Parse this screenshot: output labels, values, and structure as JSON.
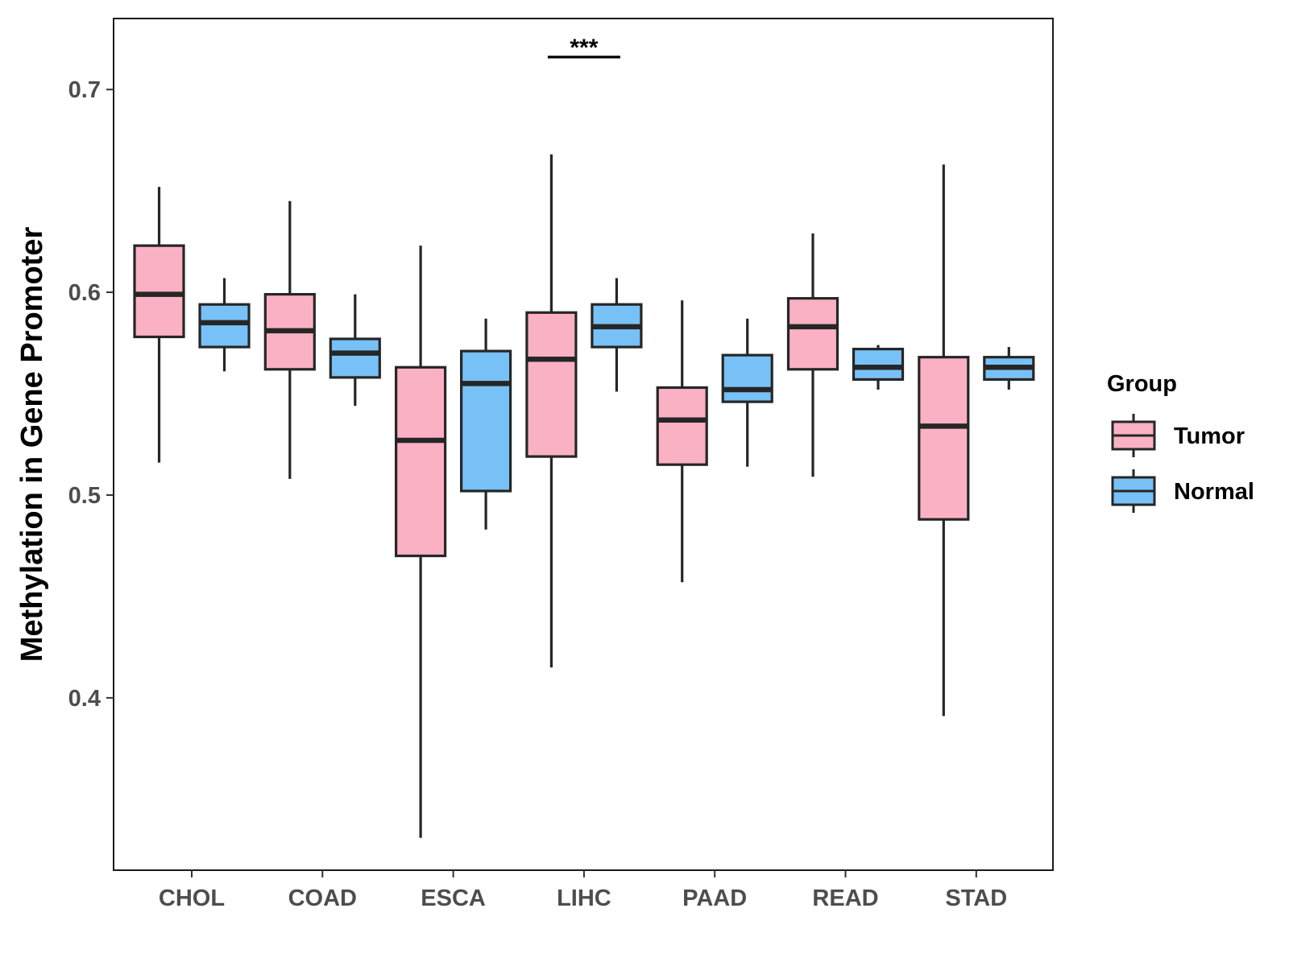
{
  "chart_data": {
    "type": "boxplot",
    "title": "",
    "xlabel": "",
    "ylabel": "Methylation in Gene Promoter",
    "ylim": [
      0.315,
      0.735
    ],
    "y_ticks": [
      "0.4",
      "0.5",
      "0.6",
      "0.7"
    ],
    "y_tick_values": [
      0.4,
      0.5,
      0.6,
      0.7
    ],
    "categories": [
      "CHOL",
      "COAD",
      "ESCA",
      "LIHC",
      "PAAD",
      "READ",
      "STAD"
    ],
    "legend": {
      "title": "Group",
      "position": "right",
      "entries": [
        "Tumor",
        "Normal"
      ]
    },
    "colors": {
      "Tumor": "#fbb1c4",
      "Normal": "#77c1f7",
      "outline": "#262626",
      "frame": "#1a1a1a"
    },
    "series": [
      {
        "name": "Tumor",
        "boxes": [
          {
            "category": "CHOL",
            "whisker_low": 0.516,
            "q1": 0.578,
            "median": 0.599,
            "q3": 0.623,
            "whisker_high": 0.652
          },
          {
            "category": "COAD",
            "whisker_low": 0.508,
            "q1": 0.562,
            "median": 0.581,
            "q3": 0.599,
            "whisker_high": 0.645
          },
          {
            "category": "ESCA",
            "whisker_low": 0.331,
            "q1": 0.47,
            "median": 0.527,
            "q3": 0.563,
            "whisker_high": 0.623
          },
          {
            "category": "LIHC",
            "whisker_low": 0.415,
            "q1": 0.519,
            "median": 0.567,
            "q3": 0.59,
            "whisker_high": 0.668
          },
          {
            "category": "PAAD",
            "whisker_low": 0.457,
            "q1": 0.515,
            "median": 0.537,
            "q3": 0.553,
            "whisker_high": 0.596
          },
          {
            "category": "READ",
            "whisker_low": 0.509,
            "q1": 0.562,
            "median": 0.583,
            "q3": 0.597,
            "whisker_high": 0.629
          },
          {
            "category": "STAD",
            "whisker_low": 0.391,
            "q1": 0.488,
            "median": 0.534,
            "q3": 0.568,
            "whisker_high": 0.663
          }
        ]
      },
      {
        "name": "Normal",
        "boxes": [
          {
            "category": "CHOL",
            "whisker_low": 0.561,
            "q1": 0.573,
            "median": 0.585,
            "q3": 0.594,
            "whisker_high": 0.607
          },
          {
            "category": "COAD",
            "whisker_low": 0.544,
            "q1": 0.558,
            "median": 0.57,
            "q3": 0.577,
            "whisker_high": 0.599
          },
          {
            "category": "ESCA",
            "whisker_low": 0.483,
            "q1": 0.502,
            "median": 0.555,
            "q3": 0.571,
            "whisker_high": 0.587
          },
          {
            "category": "LIHC",
            "whisker_low": 0.551,
            "q1": 0.573,
            "median": 0.583,
            "q3": 0.594,
            "whisker_high": 0.607
          },
          {
            "category": "PAAD",
            "whisker_low": 0.514,
            "q1": 0.546,
            "median": 0.552,
            "q3": 0.569,
            "whisker_high": 0.587
          },
          {
            "category": "READ",
            "whisker_low": 0.552,
            "q1": 0.557,
            "median": 0.563,
            "q3": 0.572,
            "whisker_high": 0.574
          },
          {
            "category": "STAD",
            "whisker_low": 0.552,
            "q1": 0.557,
            "median": 0.563,
            "q3": 0.568,
            "whisker_high": 0.573
          }
        ]
      }
    ],
    "annotations": [
      {
        "category": "LIHC",
        "text": "***",
        "y": 0.716
      }
    ]
  }
}
